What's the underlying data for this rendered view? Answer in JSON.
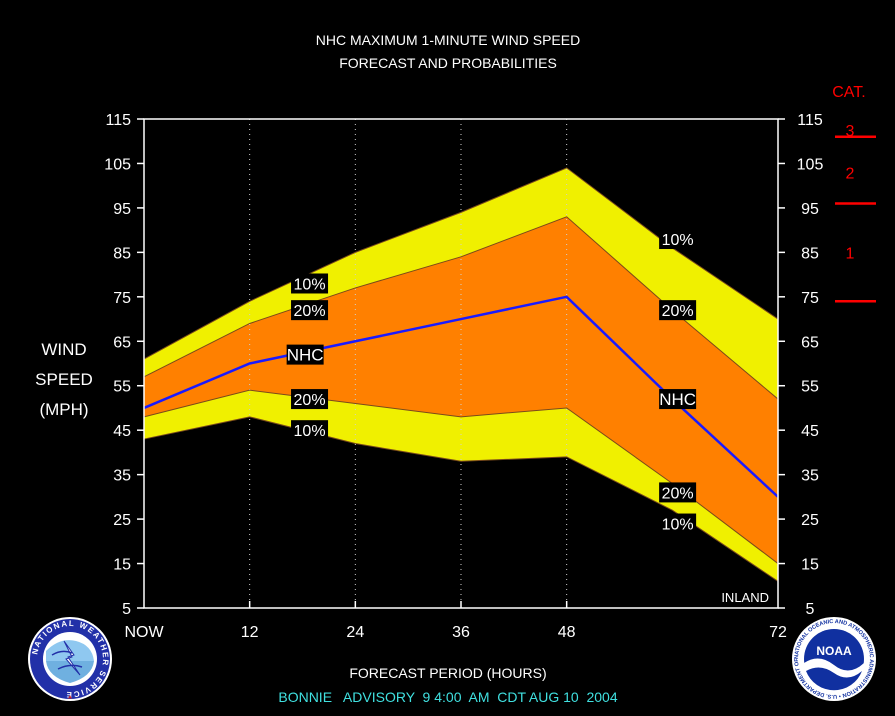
{
  "title": {
    "line1": "NHC MAXIMUM 1-MINUTE WIND SPEED",
    "line2": "FORECAST AND PROBABILITIES"
  },
  "ylabel": [
    "WIND",
    "SPEED",
    "(MPH)"
  ],
  "xlabel": "FORECAST PERIOD (HOURS)",
  "advisory": "BONNIE   ADVISORY  9 4:00  AM  CDT AUG 10  2004",
  "inland_label": "INLAND",
  "category": {
    "header": "CAT.",
    "labels": [
      {
        "text": "3",
        "y": 112.5
      },
      {
        "text": "2",
        "y": 103
      },
      {
        "text": "1",
        "y": 85
      }
    ],
    "thresholds": [
      111,
      96,
      74
    ],
    "color": "#ff0000"
  },
  "logos": {
    "left": "NATIONAL WEATHER SERVICE",
    "right_center": "NOAA",
    "right_ring": "NATIONAL OCEANIC AND ATMOSPHERIC ADMINISTRATION • U.S. DEPARTMENT OF COMMERCE •"
  },
  "colors": {
    "background": "#000000",
    "band_10": "#f0f000",
    "band_20": "#ff8000",
    "nhc_line": "#1a1aff",
    "text": "#ffffff",
    "advisory_text": "#40e0e0"
  },
  "chart_data": {
    "type": "area",
    "xlim": [
      0,
      72
    ],
    "ylim": [
      5,
      115
    ],
    "x_ticks": [
      {
        "x": 0,
        "label": "NOW"
      },
      {
        "x": 12,
        "label": "12"
      },
      {
        "x": 24,
        "label": "24"
      },
      {
        "x": 36,
        "label": "36"
      },
      {
        "x": 48,
        "label": "48"
      },
      {
        "x": 72,
        "label": "72"
      }
    ],
    "y_ticks": [
      5,
      15,
      25,
      35,
      45,
      55,
      65,
      75,
      85,
      95,
      105,
      115
    ],
    "vertical_dotted_grid_x": [
      12,
      24,
      36,
      48
    ],
    "x": [
      0,
      12,
      24,
      36,
      48,
      60,
      72
    ],
    "series": [
      {
        "name": "10%",
        "role": "upper_10",
        "values": [
          61,
          74,
          85,
          94,
          104,
          86,
          70
        ]
      },
      {
        "name": "20%",
        "role": "upper_20",
        "values": [
          57,
          69,
          77,
          84,
          93,
          72,
          52
        ]
      },
      {
        "name": "NHC",
        "role": "nhc",
        "values": [
          50,
          60,
          65,
          70,
          75,
          52,
          30
        ]
      },
      {
        "name": "20%",
        "role": "lower_20",
        "values": [
          48,
          54,
          51,
          48,
          50,
          33,
          15
        ]
      },
      {
        "name": "10%",
        "role": "lower_10",
        "values": [
          43,
          48,
          42,
          38,
          39,
          27,
          11
        ]
      }
    ],
    "labels": [
      {
        "text": "10%",
        "x": 18.8,
        "y": 78
      },
      {
        "text": "20%",
        "x": 18.8,
        "y": 72
      },
      {
        "text": "NHC",
        "x": 18.3,
        "y": 62
      },
      {
        "text": "20%",
        "x": 18.8,
        "y": 52
      },
      {
        "text": "10%",
        "x": 18.8,
        "y": 45
      },
      {
        "text": "10%",
        "x": 60.6,
        "y": 88
      },
      {
        "text": "20%",
        "x": 60.6,
        "y": 72
      },
      {
        "text": "NHC",
        "x": 60.6,
        "y": 52
      },
      {
        "text": "20%",
        "x": 60.6,
        "y": 31
      },
      {
        "text": "10%",
        "x": 60.6,
        "y": 24
      }
    ]
  }
}
